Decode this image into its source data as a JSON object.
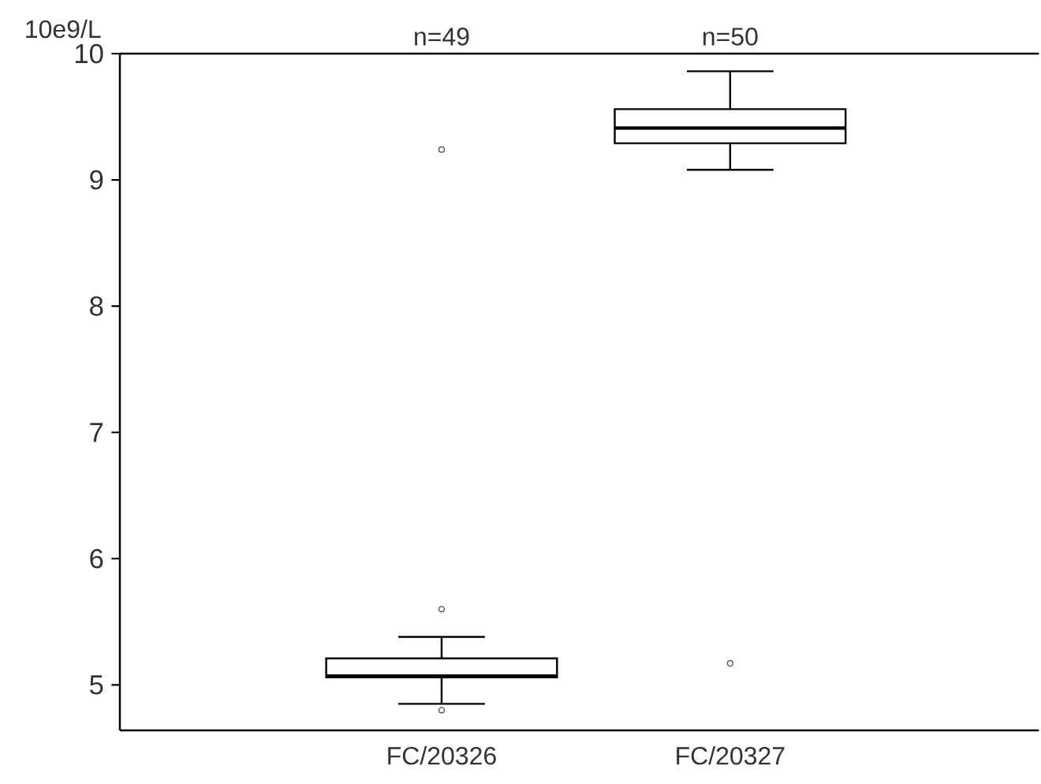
{
  "chart_data": {
    "type": "box",
    "ylabel": "10e9/L",
    "categories": [
      "FC/20326",
      "FC/20327"
    ],
    "boxes": [
      {
        "low": 4.85,
        "q1": 5.06,
        "median": 5.07,
        "q3": 5.21,
        "high": 5.38,
        "outliers": [
          9.24,
          5.6,
          4.8
        ]
      },
      {
        "low": 9.08,
        "q1": 9.29,
        "median": 9.41,
        "q3": 9.56,
        "high": 9.86,
        "outliers": [
          5.17
        ]
      }
    ],
    "annotations": [
      "n=49",
      "n=50"
    ],
    "ylim": [
      4.64,
      10
    ],
    "yticks": [
      5,
      6,
      7,
      8,
      9,
      10
    ],
    "grid": false
  }
}
